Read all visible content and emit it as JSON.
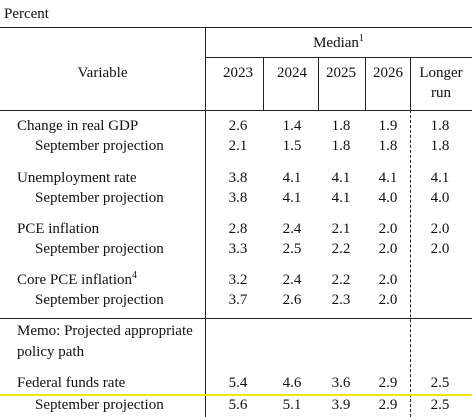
{
  "header": {
    "unit": "Percent",
    "variable": "Variable",
    "median": {
      "text": "Median",
      "note": "1"
    },
    "years": [
      "2023",
      "2024",
      "2025",
      "2026"
    ],
    "longer_run": "Longer run"
  },
  "table": {
    "groups": [
      {
        "label": "Change in real GDP",
        "values": [
          "2.6",
          "1.4",
          "1.8",
          "1.9",
          "1.8"
        ],
        "sub": {
          "label": "September projection",
          "values": [
            "2.1",
            "1.5",
            "1.8",
            "1.8",
            "1.8"
          ]
        }
      },
      {
        "label": "Unemployment rate",
        "values": [
          "3.8",
          "4.1",
          "4.1",
          "4.1",
          "4.1"
        ],
        "sub": {
          "label": "September projection",
          "values": [
            "3.8",
            "4.1",
            "4.1",
            "4.0",
            "4.0"
          ]
        }
      },
      {
        "label": "PCE inflation",
        "values": [
          "2.8",
          "2.4",
          "2.1",
          "2.0",
          "2.0"
        ],
        "sub": {
          "label": "September projection",
          "values": [
            "3.3",
            "2.5",
            "2.2",
            "2.0",
            "2.0"
          ]
        }
      },
      {
        "label": "Core PCE inflation",
        "note": "4",
        "values": [
          "3.2",
          "2.4",
          "2.2",
          "2.0"
        ],
        "sub": {
          "label": "September projection",
          "values": [
            "3.7",
            "2.6",
            "2.3",
            "2.0"
          ]
        }
      }
    ],
    "memo": "Memo: Projected appropriate policy path",
    "fed_funds": {
      "label": "Federal funds rate",
      "values": [
        "5.4",
        "4.6",
        "3.6",
        "2.9",
        "2.5"
      ],
      "sub": {
        "label": "September projection",
        "values": [
          "5.6",
          "5.1",
          "3.9",
          "2.9",
          "2.5"
        ]
      }
    }
  }
}
